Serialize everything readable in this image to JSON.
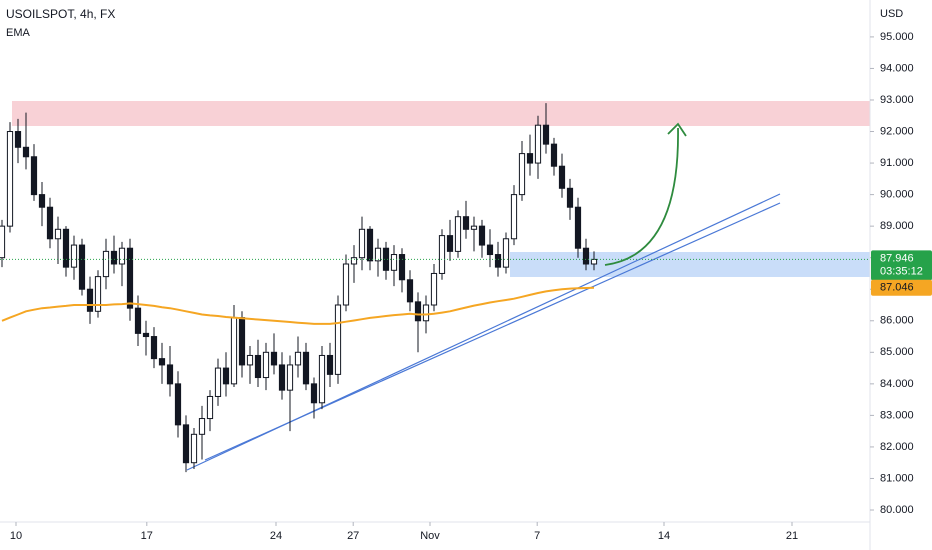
{
  "chart_data": {
    "type": "candlestick",
    "title": "USOILSPOT, 4h, FX",
    "indicator": "EMA",
    "currency": "USD",
    "countdown": "03:35:12",
    "ylim": [
      79.62,
      96.17
    ],
    "yticks": [
      {
        "value": 80,
        "label": "80.000"
      },
      {
        "value": 81,
        "label": "81.000"
      },
      {
        "value": 82,
        "label": "82.000"
      },
      {
        "value": 83,
        "label": "83.000"
      },
      {
        "value": 84,
        "label": "84.000"
      },
      {
        "value": 85,
        "label": "85.000"
      },
      {
        "value": 86,
        "label": "86.000"
      },
      {
        "value": 87,
        "label": "87.000"
      },
      {
        "value": 88,
        "label": "88.000"
      },
      {
        "value": 89,
        "label": "89.000"
      },
      {
        "value": 90,
        "label": "90.000"
      },
      {
        "value": 91,
        "label": "91.000"
      },
      {
        "value": 92,
        "label": "92.000"
      },
      {
        "value": 93,
        "label": "93.000"
      },
      {
        "value": 94,
        "label": "94.000"
      },
      {
        "value": 95,
        "label": "95.000"
      }
    ],
    "xlim": [
      -0.25,
      108.5
    ],
    "xticks": [
      {
        "value": 1.75,
        "label": "10"
      },
      {
        "value": 18.1,
        "label": "17"
      },
      {
        "value": 34.25,
        "label": "24"
      },
      {
        "value": 43.9,
        "label": "27"
      },
      {
        "value": 53.5,
        "label": "Nov"
      },
      {
        "value": 66.9,
        "label": "7"
      },
      {
        "value": 82.75,
        "label": "14"
      },
      {
        "value": 98.75,
        "label": "21"
      }
    ],
    "up_color": "#ffffff",
    "down_color": "#131722",
    "ema_color": "#f5a623",
    "last_color": "#26a24a",
    "open": [
      88.0,
      89.0,
      92.0,
      91.5,
      91.2,
      90.0,
      89.6,
      88.6,
      88.9,
      87.7,
      88.4,
      87.0,
      86.3,
      87.4,
      88.2,
      87.8,
      88.3,
      86.4,
      85.6,
      85.5,
      84.8,
      84.6,
      84.0,
      82.7,
      81.5,
      82.4,
      82.9,
      83.6,
      84.5,
      84.0,
      86.1,
      84.6,
      84.9,
      84.2,
      85.0,
      84.6,
      83.8,
      84.6,
      85.0,
      84.0,
      83.4,
      84.9,
      84.3,
      86.5,
      87.8,
      88.0,
      88.9,
      87.9,
      88.3,
      87.6,
      88.1,
      87.3,
      86.6,
      86.0,
      86.5,
      87.5,
      88.7,
      88.2,
      89.3,
      88.9,
      89.0,
      88.4,
      88.1,
      87.7,
      88.6,
      90.0,
      91.3,
      91.0,
      92.2,
      91.6,
      90.9,
      90.2,
      89.6,
      88.3,
      87.8
    ],
    "high": [
      89.2,
      92.3,
      92.4,
      92.6,
      91.6,
      90.4,
      89.9,
      89.3,
      89.0,
      88.7,
      88.6,
      87.4,
      87.6,
      88.6,
      88.7,
      88.5,
      88.6,
      86.8,
      86.0,
      85.8,
      85.3,
      85.2,
      84.4,
      83.0,
      82.6,
      83.3,
      83.8,
      84.8,
      85.0,
      86.5,
      86.3,
      85.2,
      85.4,
      85.3,
      85.6,
      85.0,
      84.9,
      85.5,
      85.3,
      84.2,
      85.2,
      85.3,
      86.8,
      88.1,
      88.4,
      89.3,
      89.0,
      88.6,
      88.5,
      88.4,
      88.3,
      87.6,
      86.9,
      86.8,
      87.8,
      88.9,
      89.2,
      89.5,
      89.8,
      89.3,
      89.2,
      88.9,
      88.5,
      88.8,
      90.3,
      91.7,
      91.9,
      92.5,
      92.9,
      91.8,
      91.3,
      90.5,
      89.9,
      88.6,
      88.2
    ],
    "low": [
      87.7,
      88.8,
      91.0,
      90.8,
      89.8,
      89.0,
      88.3,
      87.8,
      87.4,
      87.3,
      86.8,
      85.9,
      86.1,
      87.0,
      87.5,
      87.1,
      86.0,
      85.2,
      84.9,
      84.5,
      84.0,
      83.6,
      82.3,
      81.2,
      81.3,
      81.6,
      82.5,
      83.3,
      83.6,
      83.9,
      84.2,
      84.0,
      83.9,
      83.8,
      84.3,
      83.5,
      82.5,
      84.2,
      83.8,
      82.9,
      83.2,
      83.9,
      84.0,
      86.3,
      87.2,
      87.6,
      87.6,
      87.4,
      87.3,
      87.1,
      86.9,
      86.3,
      85.0,
      85.6,
      86.3,
      87.3,
      87.9,
      88.0,
      88.6,
      88.2,
      88.0,
      87.7,
      87.4,
      87.5,
      88.4,
      89.8,
      90.6,
      90.5,
      91.3,
      90.6,
      89.9,
      89.2,
      88.0,
      87.6,
      87.6
    ],
    "close": [
      89.0,
      92.0,
      91.5,
      91.2,
      90.0,
      89.6,
      88.6,
      88.9,
      87.7,
      88.4,
      87.0,
      86.3,
      87.4,
      88.2,
      87.8,
      88.3,
      86.4,
      85.6,
      85.5,
      84.8,
      84.6,
      84.0,
      82.7,
      81.5,
      82.4,
      82.9,
      83.6,
      84.5,
      84.0,
      86.1,
      84.6,
      84.9,
      84.2,
      85.0,
      84.6,
      83.8,
      84.6,
      85.0,
      84.0,
      83.4,
      84.9,
      84.3,
      86.5,
      87.8,
      88.0,
      88.9,
      87.9,
      88.3,
      87.6,
      88.1,
      87.3,
      86.6,
      86.0,
      86.5,
      87.5,
      88.7,
      88.2,
      89.3,
      88.9,
      89.0,
      88.4,
      88.1,
      87.7,
      88.6,
      90.0,
      91.3,
      91.0,
      92.2,
      91.6,
      90.9,
      90.2,
      89.6,
      88.3,
      87.8,
      87.946
    ],
    "ema": [
      86.0,
      86.1,
      86.2,
      86.3,
      86.35,
      86.4,
      86.42,
      86.45,
      86.47,
      86.5,
      86.5,
      86.5,
      86.5,
      86.5,
      86.52,
      86.53,
      86.55,
      86.53,
      86.5,
      86.47,
      86.43,
      86.4,
      86.35,
      86.3,
      86.25,
      86.2,
      86.17,
      86.15,
      86.12,
      86.1,
      86.08,
      86.06,
      86.04,
      86.02,
      86.0,
      85.98,
      85.96,
      85.94,
      85.92,
      85.9,
      85.9,
      85.9,
      85.93,
      85.97,
      86.01,
      86.05,
      86.09,
      86.12,
      86.15,
      86.18,
      86.2,
      86.22,
      86.2,
      86.2,
      86.22,
      86.26,
      86.3,
      86.36,
      86.42,
      86.48,
      86.53,
      86.58,
      86.62,
      86.66,
      86.7,
      86.76,
      86.82,
      86.88,
      86.93,
      86.97,
      87.0,
      87.02,
      87.03,
      87.04,
      87.046
    ]
  }
}
